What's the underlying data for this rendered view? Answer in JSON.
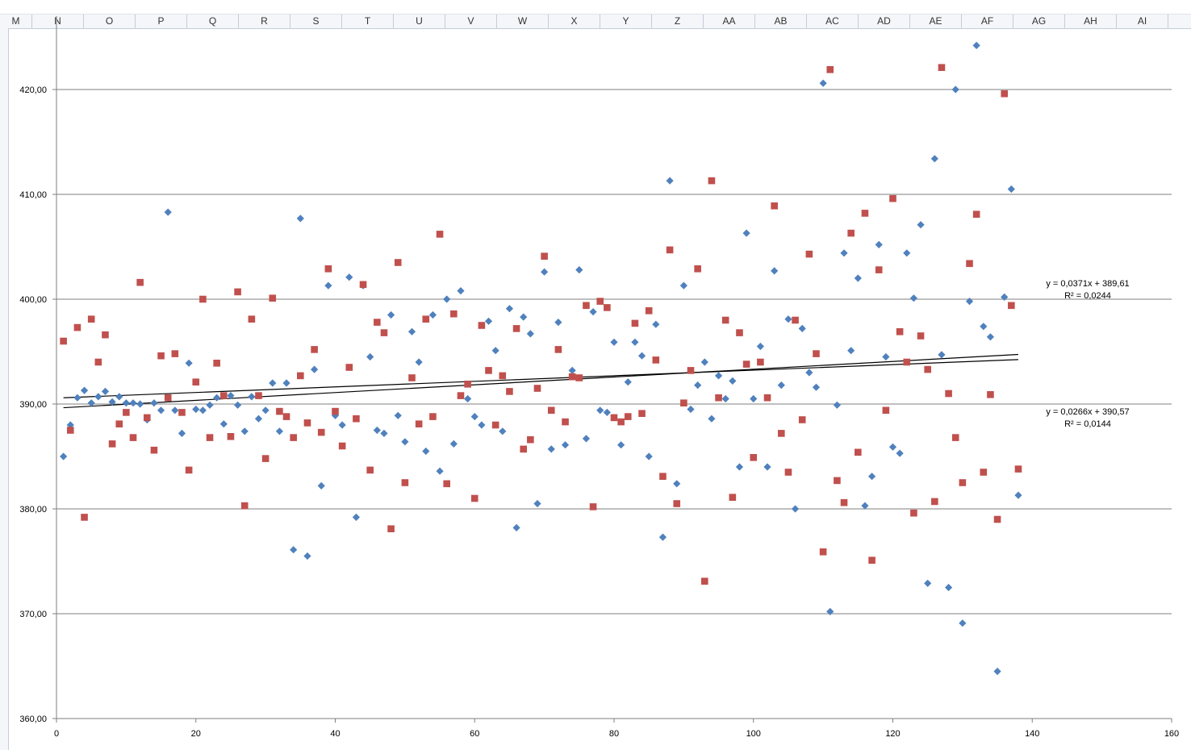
{
  "sheet": {
    "columns": [
      "M",
      "N",
      "O",
      "P",
      "Q",
      "R",
      "S",
      "T",
      "U",
      "V",
      "W",
      "X",
      "Y",
      "Z",
      "AA",
      "AB",
      "AC",
      "AD",
      "AE",
      "AF",
      "AG",
      "AH",
      "AI"
    ]
  },
  "chart_data": {
    "type": "scatter",
    "title": "",
    "xlabel": "",
    "ylabel": "",
    "xlim": [
      0,
      160
    ],
    "ylim": [
      360,
      425
    ],
    "x_ticks": [
      0,
      20,
      40,
      60,
      80,
      100,
      120,
      140,
      160
    ],
    "y_ticks": [
      360,
      370,
      380,
      390,
      400,
      410,
      420
    ],
    "y_tick_labels": [
      "360,00",
      "370,00",
      "380,00",
      "390,00",
      "400,00",
      "410,00",
      "420,00"
    ],
    "grid": "horizontal",
    "legend": "none",
    "series": [
      {
        "marker": "diamond",
        "color": "#4f81bd",
        "x": [
          1,
          2,
          3,
          4,
          5,
          6,
          7,
          8,
          9,
          10,
          11,
          12,
          13,
          14,
          15,
          16,
          17,
          18,
          19,
          20,
          21,
          22,
          23,
          24,
          25,
          26,
          27,
          28,
          29,
          30,
          31,
          32,
          33,
          34,
          35,
          36,
          37,
          38,
          39,
          40,
          41,
          42,
          43,
          44,
          45,
          46,
          47,
          48,
          49,
          50,
          51,
          52,
          53,
          54,
          55,
          56,
          57,
          58,
          59,
          60,
          61,
          62,
          63,
          64,
          65,
          66,
          67,
          68,
          69,
          70,
          71,
          72,
          73,
          74,
          75,
          76,
          77,
          78,
          79,
          80,
          81,
          82,
          83,
          84,
          85,
          86,
          87,
          88,
          89,
          90,
          91,
          92,
          93,
          94,
          95,
          96,
          97,
          98,
          99,
          100,
          101,
          102,
          103,
          104,
          105,
          106,
          107,
          108,
          109,
          110,
          111,
          112,
          113,
          114,
          115,
          116,
          117,
          118,
          119,
          120,
          121,
          122,
          123,
          124,
          125,
          126,
          127,
          128,
          129,
          130,
          131,
          132,
          133,
          134,
          135,
          136,
          137,
          138
        ],
        "y": [
          385.0,
          388.0,
          390.6,
          391.3,
          390.1,
          390.7,
          391.2,
          390.2,
          390.7,
          390.1,
          390.1,
          390.0,
          388.5,
          390.1,
          389.4,
          408.3,
          389.4,
          387.2,
          393.9,
          389.5,
          389.4,
          389.9,
          390.6,
          388.1,
          390.8,
          389.9,
          387.4,
          390.7,
          388.6,
          389.4,
          392.0,
          387.4,
          392.0,
          376.1,
          407.7,
          375.5,
          393.3,
          382.2,
          401.3,
          388.9,
          388.0,
          402.1,
          379.2,
          401.3,
          394.5,
          387.5,
          387.2,
          398.5,
          388.9,
          386.4,
          396.9,
          394.0,
          385.5,
          398.5,
          383.6,
          400.0,
          386.2,
          400.8,
          390.5,
          388.8,
          388.0,
          397.9,
          395.1,
          387.4,
          399.1,
          378.2,
          398.3,
          396.7,
          380.5,
          402.6,
          385.7,
          397.8,
          386.1,
          393.2,
          402.8,
          386.7,
          398.8,
          389.4,
          389.2,
          395.9,
          386.1,
          392.1,
          395.9,
          394.6,
          385.0,
          397.6,
          377.3,
          411.3,
          382.4,
          401.3,
          389.5,
          391.8,
          394.0,
          388.6,
          392.7,
          390.5,
          392.2,
          384.0,
          406.3,
          390.5,
          395.5,
          384.0,
          402.7,
          391.8,
          398.1,
          380.0,
          397.2,
          393.0,
          391.6,
          420.6,
          370.2,
          389.9,
          404.4,
          395.1,
          402.0,
          380.3,
          383.1,
          405.2,
          394.5,
          385.9,
          385.3,
          404.4,
          400.1,
          407.1,
          372.9,
          413.4,
          394.7,
          372.5,
          420.0,
          369.1,
          399.8,
          424.2,
          397.4,
          396.4,
          364.5,
          400.2,
          410.5,
          381.3
        ]
      },
      {
        "marker": "square",
        "color": "#c0504d",
        "x": [
          1,
          2,
          3,
          4,
          5,
          6,
          7,
          8,
          9,
          10,
          11,
          12,
          13,
          14,
          15,
          16,
          17,
          18,
          19,
          20,
          21,
          22,
          23,
          24,
          25,
          26,
          27,
          28,
          29,
          30,
          31,
          32,
          33,
          34,
          35,
          36,
          37,
          38,
          39,
          40,
          41,
          42,
          43,
          44,
          45,
          46,
          47,
          48,
          49,
          50,
          51,
          52,
          53,
          54,
          55,
          56,
          57,
          58,
          59,
          60,
          61,
          62,
          63,
          64,
          65,
          66,
          67,
          68,
          69,
          70,
          71,
          72,
          73,
          74,
          75,
          76,
          77,
          78,
          79,
          80,
          81,
          82,
          83,
          84,
          85,
          86,
          87,
          88,
          89,
          90,
          91,
          92,
          93,
          94,
          95,
          96,
          97,
          98,
          99,
          100,
          101,
          102,
          103,
          104,
          105,
          106,
          107,
          108,
          109,
          110,
          111,
          112,
          113,
          114,
          115,
          116,
          117,
          118,
          119,
          120,
          121,
          122,
          123,
          124,
          125,
          126,
          127,
          128,
          129,
          130,
          131,
          132,
          133,
          134,
          135,
          136,
          137,
          138
        ],
        "y": [
          396.0,
          387.5,
          397.3,
          379.2,
          398.1,
          394.0,
          396.6,
          386.2,
          388.1,
          389.2,
          386.8,
          401.6,
          388.7,
          385.6,
          394.6,
          390.6,
          394.8,
          389.2,
          383.7,
          392.1,
          400.0,
          386.8,
          393.9,
          390.8,
          386.9,
          400.7,
          380.3,
          398.1,
          390.8,
          384.8,
          400.1,
          389.3,
          388.8,
          386.8,
          392.7,
          388.2,
          395.2,
          387.3,
          402.9,
          389.3,
          386.0,
          393.5,
          388.6,
          401.4,
          383.7,
          397.8,
          396.8,
          378.1,
          403.5,
          382.5,
          392.5,
          388.1,
          398.1,
          388.8,
          406.2,
          382.4,
          398.6,
          390.8,
          391.9,
          381.0,
          397.5,
          393.2,
          388.0,
          392.7,
          391.2,
          397.2,
          385.7,
          386.6,
          391.5,
          404.1,
          389.4,
          395.2,
          388.3,
          392.6,
          392.5,
          399.4,
          380.2,
          399.8,
          399.2,
          388.7,
          388.3,
          388.8,
          397.7,
          389.1,
          398.9,
          394.2,
          383.1,
          404.7,
          380.5,
          390.1,
          393.2,
          402.9,
          373.1,
          411.3,
          390.6,
          398.0,
          381.1,
          396.8,
          393.8,
          384.9,
          394.0,
          390.6,
          408.9,
          387.2,
          383.5,
          398.0,
          388.5,
          404.3,
          394.8,
          375.9,
          421.9,
          382.7,
          380.6,
          406.3,
          385.4,
          408.2,
          375.1,
          402.8,
          389.4,
          409.6,
          396.9,
          394.0,
          379.6,
          396.5,
          393.3,
          380.7,
          422.1,
          391.0,
          386.8,
          382.5,
          403.4,
          408.1,
          383.5,
          390.9,
          379.0,
          419.6,
          399.4,
          383.8
        ]
      }
    ],
    "trendlines": [
      {
        "slope": 0.0371,
        "intercept": 389.61,
        "x_range": [
          1,
          138
        ],
        "equation": "y = 0,0371x + 389,61",
        "r2": "R² = 0,0244"
      },
      {
        "slope": 0.0266,
        "intercept": 390.57,
        "x_range": [
          1,
          138
        ],
        "equation": "y = 0,0266x + 390,57",
        "r2": "R² = 0,0144"
      }
    ]
  }
}
